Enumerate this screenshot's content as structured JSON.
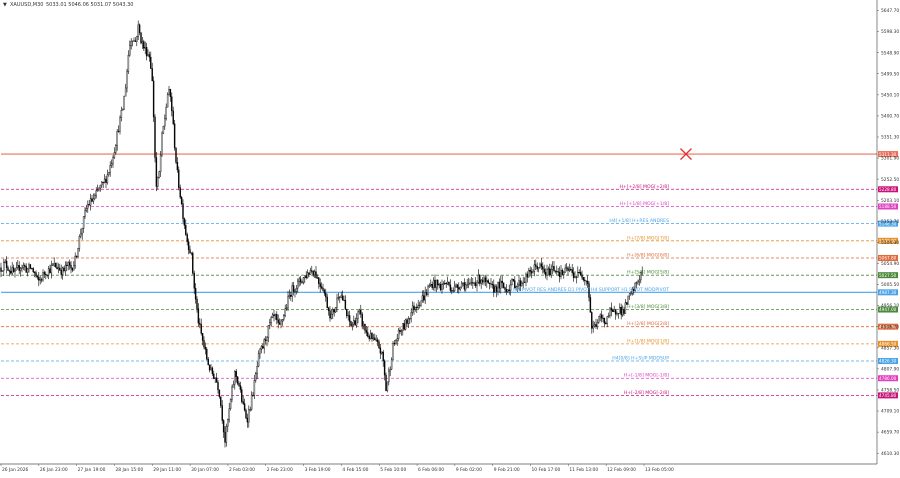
{
  "header": {
    "symbol_label": "XAUUSD,M30",
    "ohlc_label": "5033.01 5046.06 5031.07 5043.30"
  },
  "chart_data": {
    "type": "candlestick",
    "ylim": [
      4580,
      5700
    ],
    "grid": false,
    "y_ticks": [
      {
        "value": 5647.7,
        "label": "5647.70"
      },
      {
        "value": 5598.3,
        "label": "5598.30"
      },
      {
        "value": 5548.9,
        "label": "5548.90"
      },
      {
        "value": 5499.5,
        "label": "5499.50"
      },
      {
        "value": 5450.1,
        "label": "5450.10"
      },
      {
        "value": 5400.7,
        "label": "5400.70"
      },
      {
        "value": 5351.3,
        "label": "5351.30"
      },
      {
        "value": 5301.9,
        "label": "5301.90"
      },
      {
        "value": 5252.5,
        "label": "5252.50"
      },
      {
        "value": 5203.1,
        "label": "5203.10"
      },
      {
        "value": 5153.7,
        "label": "5153.70"
      },
      {
        "value": 5104.3,
        "label": "5104.30"
      },
      {
        "value": 5054.9,
        "label": "5054.90"
      },
      {
        "value": 5005.5,
        "label": "5005.50"
      },
      {
        "value": 4956.1,
        "label": "4956.10"
      },
      {
        "value": 4906.7,
        "label": "4906.70"
      },
      {
        "value": 4857.3,
        "label": "4857.30"
      },
      {
        "value": 4807.9,
        "label": "4807.90"
      },
      {
        "value": 4758.5,
        "label": "4758.50"
      },
      {
        "value": 4709.1,
        "label": "4709.10"
      },
      {
        "value": 4659.7,
        "label": "4659.70"
      },
      {
        "value": 4610.3,
        "label": "4610.30"
      }
    ],
    "x_ticks": [
      "26 Jan 2026",
      "26 Jan 23:00",
      "27 Jan 19:00",
      "28 Jan 15:00",
      "29 Jan 11:00",
      "30 Jan 07:00",
      "2 Feb 03:00",
      "2 Feb 23:00",
      "3 Feb 19:00",
      "4 Feb 15:00",
      "5 Feb 10:00",
      "6 Feb 06:00",
      "9 Feb 02:00",
      "9 Feb 21:00",
      "10 Feb 17:00",
      "11 Feb 13:00",
      "12 Feb 09:00",
      "13 Feb 05:00"
    ],
    "price_path": [
      [
        0,
        5045
      ],
      [
        4,
        5055
      ],
      [
        9,
        5040
      ],
      [
        14,
        5030
      ],
      [
        19,
        5050
      ],
      [
        23,
        5048
      ],
      [
        26,
        5040
      ],
      [
        30,
        5045
      ],
      [
        34,
        5030
      ],
      [
        37,
        5010
      ],
      [
        40,
        5020
      ],
      [
        44,
        5035
      ],
      [
        48,
        5040
      ],
      [
        53,
        5050
      ],
      [
        58,
        5045
      ],
      [
        62,
        5035
      ],
      [
        66,
        5050
      ],
      [
        70,
        5045
      ],
      [
        74,
        5060
      ],
      [
        78,
        5110
      ],
      [
        82,
        5150
      ],
      [
        86,
        5190
      ],
      [
        90,
        5200
      ],
      [
        94,
        5210
      ],
      [
        98,
        5230
      ],
      [
        102,
        5240
      ],
      [
        106,
        5260
      ],
      [
        110,
        5290
      ],
      [
        114,
        5330
      ],
      [
        118,
        5380
      ],
      [
        122,
        5420
      ],
      [
        125,
        5480
      ],
      [
        128,
        5560
      ],
      [
        131,
        5590
      ],
      [
        134,
        5570
      ],
      [
        137,
        5610
      ],
      [
        140,
        5580
      ],
      [
        143,
        5560
      ],
      [
        146,
        5550
      ],
      [
        149,
        5540
      ],
      [
        151,
        5490
      ],
      [
        153,
        5380
      ],
      [
        155,
        5230
      ],
      [
        158,
        5260
      ],
      [
        161,
        5350
      ],
      [
        164,
        5400
      ],
      [
        167,
        5460
      ],
      [
        170,
        5440
      ],
      [
        173,
        5350
      ],
      [
        176,
        5270
      ],
      [
        179,
        5220
      ],
      [
        182,
        5170
      ],
      [
        186,
        5110
      ],
      [
        190,
        5080
      ],
      [
        194,
        4980
      ],
      [
        198,
        4910
      ],
      [
        202,
        4870
      ],
      [
        206,
        4830
      ],
      [
        210,
        4800
      ],
      [
        214,
        4790
      ],
      [
        218,
        4760
      ],
      [
        221,
        4700
      ],
      [
        224,
        4640
      ],
      [
        227,
        4690
      ],
      [
        230,
        4740
      ],
      [
        234,
        4800
      ],
      [
        238,
        4770
      ],
      [
        242,
        4720
      ],
      [
        246,
        4690
      ],
      [
        250,
        4730
      ],
      [
        254,
        4780
      ],
      [
        258,
        4840
      ],
      [
        262,
        4860
      ],
      [
        266,
        4890
      ],
      [
        270,
        4920
      ],
      [
        274,
        4930
      ],
      [
        278,
        4900
      ],
      [
        282,
        4930
      ],
      [
        286,
        4960
      ],
      [
        290,
        4990
      ],
      [
        294,
        5000
      ],
      [
        298,
        5010
      ],
      [
        302,
        5020
      ],
      [
        306,
        5030
      ],
      [
        310,
        5040
      ],
      [
        314,
        5035
      ],
      [
        318,
        5010
      ],
      [
        322,
        5000
      ],
      [
        326,
        4960
      ],
      [
        330,
        4930
      ],
      [
        334,
        4950
      ],
      [
        338,
        4990
      ],
      [
        342,
        4970
      ],
      [
        346,
        4930
      ],
      [
        350,
        4910
      ],
      [
        354,
        4920
      ],
      [
        358,
        4940
      ],
      [
        362,
        4910
      ],
      [
        366,
        4890
      ],
      [
        370,
        4880
      ],
      [
        374,
        4870
      ],
      [
        378,
        4860
      ],
      [
        382,
        4830
      ],
      [
        385,
        4760
      ],
      [
        388,
        4800
      ],
      [
        392,
        4860
      ],
      [
        396,
        4880
      ],
      [
        400,
        4900
      ],
      [
        404,
        4910
      ],
      [
        408,
        4930
      ],
      [
        412,
        4950
      ],
      [
        416,
        4960
      ],
      [
        420,
        4970
      ],
      [
        424,
        4980
      ],
      [
        428,
        5000
      ],
      [
        432,
        5010
      ],
      [
        436,
        5005
      ],
      [
        440,
        5000
      ],
      [
        444,
        5010
      ],
      [
        448,
        5005
      ],
      [
        452,
        4995
      ],
      [
        456,
        5000
      ],
      [
        460,
        5010
      ],
      [
        464,
        5005
      ],
      [
        468,
        5000
      ],
      [
        472,
        5010
      ],
      [
        476,
        5015
      ],
      [
        480,
        5020
      ],
      [
        484,
        5010
      ],
      [
        488,
        5000
      ],
      [
        492,
        4995
      ],
      [
        496,
        5000
      ],
      [
        500,
        5005
      ],
      [
        504,
        4995
      ],
      [
        508,
        5000
      ],
      [
        512,
        5010
      ],
      [
        516,
        5005
      ],
      [
        520,
        5010
      ],
      [
        524,
        5020
      ],
      [
        528,
        5030
      ],
      [
        532,
        5040
      ],
      [
        536,
        5050
      ],
      [
        540,
        5045
      ],
      [
        544,
        5030
      ],
      [
        548,
        5035
      ],
      [
        552,
        5045
      ],
      [
        556,
        5040
      ],
      [
        560,
        5030
      ],
      [
        564,
        5035
      ],
      [
        568,
        5040
      ],
      [
        572,
        5030
      ],
      [
        576,
        5025
      ],
      [
        580,
        5035
      ],
      [
        584,
        5020
      ],
      [
        587,
        5010
      ],
      [
        589,
        4950
      ],
      [
        591,
        4900
      ],
      [
        594,
        4910
      ],
      [
        597,
        4920
      ],
      [
        600,
        4930
      ],
      [
        603,
        4915
      ],
      [
        606,
        4930
      ],
      [
        609,
        4940
      ],
      [
        612,
        4935
      ],
      [
        615,
        4945
      ],
      [
        618,
        4950
      ],
      [
        621,
        4940
      ],
      [
        624,
        4950
      ],
      [
        627,
        4970
      ],
      [
        630,
        4980
      ],
      [
        633,
        4995
      ],
      [
        636,
        5010
      ],
      [
        639,
        5025
      ],
      [
        642,
        5043
      ]
    ],
    "horizontal_levels": [
      {
        "price": 5311.3,
        "label": "",
        "price_label": "5311.30",
        "color": "#e8705a",
        "style": "solid",
        "width": 1.2
      },
      {
        "price": 5228.8,
        "label": "H+[+2/8] MOG[+2/8]",
        "price_label": "5228.80",
        "color": "#c8147a",
        "style": "dash"
      },
      {
        "price": 5188.5,
        "label": "H+[+1/8] MOG[+1/8]",
        "price_label": "5188.50",
        "color": "#e040c0",
        "style": "dash"
      },
      {
        "price": 5148.3,
        "label": "H4[+1/8] H+RES ANDRES",
        "price_label": "5148.30",
        "color": "#4aa3e8",
        "style": "dash"
      },
      {
        "price": 5108.0,
        "label": "H+[7/8] MOG[7/8]",
        "price_label": "5108.00",
        "color": "#e8902a",
        "style": "dash"
      },
      {
        "price": 5067.8,
        "label": "H+[6/8] MOG[6/8]",
        "price_label": "5067.80",
        "color": "#e06a3a",
        "style": "dash"
      },
      {
        "price": 5027.5,
        "label": "H+[5/8] MOG[5/8]",
        "price_label": "5027.50",
        "color": "#4a8a3a",
        "style": "dash"
      },
      {
        "price": 4987.3,
        "label": "MN PIVOT RES ANDRES D1 PIVOT H4 SUPPORT H1 PIVOT MDDPIVOT",
        "price_label": "4987.30",
        "color": "#4aa3e8",
        "style": "solid",
        "width": 1.2
      },
      {
        "price": 4947.0,
        "label": "H+[3/8] MOG[3/8]",
        "price_label": "4947.00",
        "color": "#4a8a3a",
        "style": "dash"
      },
      {
        "price": 4906.8,
        "label": "H+[2/8] MOG[2/8]",
        "price_label": "4906.80",
        "color": "#e06a3a",
        "style": "dash"
      },
      {
        "price": 4866.5,
        "label": "H+[1/8] MOG[1/8]",
        "price_label": "4866.50",
        "color": "#e8902a",
        "style": "dash"
      },
      {
        "price": 4826.3,
        "label": "H4[0/8] H+SUP MDDSUP",
        "price_label": "4826.30",
        "color": "#4aa3e8",
        "style": "dash"
      },
      {
        "price": 4786.0,
        "label": "H+[-1/8] MOG[-1/8]",
        "price_label": "4786.00",
        "color": "#e040c0",
        "style": "dash"
      },
      {
        "price": 4745.8,
        "label": "H+[-2/8] MOG[-2/8]",
        "price_label": "4745.80",
        "color": "#c8147a",
        "style": "dash"
      }
    ],
    "marker": {
      "price": 5311.3,
      "index": 685,
      "color": "#e03030",
      "shape": "x"
    },
    "colors": {
      "candle": "#000000",
      "axis": "#555555",
      "text": "#333333"
    }
  }
}
